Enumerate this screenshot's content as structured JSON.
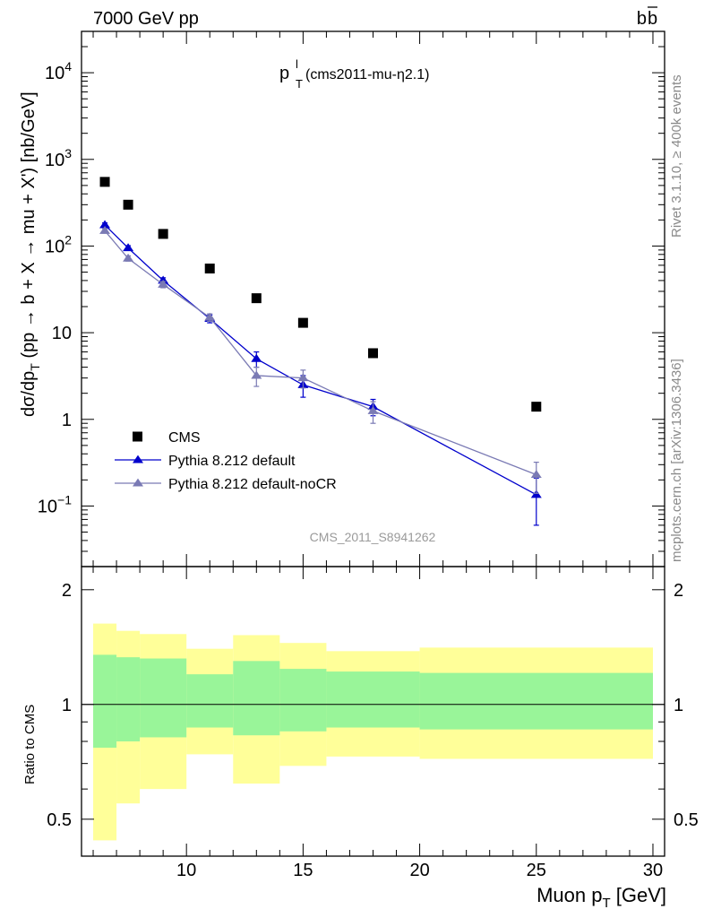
{
  "header": {
    "left": "7000 GeV pp",
    "right_b": "b",
    "right_bbar": "b"
  },
  "side_labels": {
    "rivet": "Rivet 3.1.10, ≥ 400k events",
    "mcplots": "mcplots.cern.ch [arXiv:1306.3436]"
  },
  "watermark": "CMS_2011_S8941262",
  "chart_data": [
    {
      "type": "scatter",
      "panel": "main",
      "title_main": "p",
      "title_sup": "l",
      "title_sub": "T",
      "title_rest": " (cms2011-mu-η2.1)",
      "ylabel": {
        "pre": "dσ/dp",
        "sub": "T",
        "post": "  (pp → b + X → mu + X') [nb/GeV]"
      },
      "yscale": "log",
      "ylim": [
        0.02,
        30000
      ],
      "xlim": [
        5.5,
        30.5
      ],
      "yticks": [
        {
          "v": 0.1,
          "base": "10",
          "exp": "−1"
        },
        {
          "v": 1,
          "base": "1",
          "exp": ""
        },
        {
          "v": 10,
          "base": "10",
          "exp": ""
        },
        {
          "v": 100,
          "base": "10",
          "exp": "2"
        },
        {
          "v": 1000,
          "base": "10",
          "exp": "3"
        },
        {
          "v": 10000,
          "base": "10",
          "exp": "4"
        }
      ],
      "legend_position": "bottom-left",
      "series": [
        {
          "name": "CMS",
          "color": "#000000",
          "marker": "square",
          "x": [
            6.5,
            7.5,
            9,
            11,
            13,
            15,
            18,
            25
          ],
          "y": [
            550,
            300,
            138,
            55,
            25,
            13,
            5.8,
            1.4
          ]
        },
        {
          "name": "Pythia 8.212 default",
          "color": "#0000cc",
          "marker": "triangle",
          "x": [
            6.5,
            7.5,
            9,
            11,
            13,
            15,
            18,
            25
          ],
          "y": [
            175,
            95,
            40,
            14.5,
            5.0,
            2.5,
            1.4,
            0.135
          ],
          "yerr": [
            10,
            6,
            3,
            1.5,
            1.0,
            0.7,
            0.3,
            0.075
          ]
        },
        {
          "name": "Pythia 8.212 default-noCR",
          "color": "#7a7ab4",
          "marker": "triangle",
          "x": [
            6.5,
            7.5,
            9,
            11,
            13,
            15,
            18,
            25
          ],
          "y": [
            150,
            72,
            36,
            15,
            3.2,
            3.0,
            1.25,
            0.23
          ],
          "yerr": [
            9,
            5,
            3,
            1.5,
            0.8,
            0.7,
            0.35,
            0.09
          ]
        }
      ]
    },
    {
      "type": "area",
      "panel": "ratio",
      "ylabel": "Ratio to CMS",
      "xlabel_main": "Muon p",
      "xlabel_sub": "T",
      "xlabel_post": " [GeV]",
      "ylim": [
        0.4,
        2.3
      ],
      "xlim": [
        5.5,
        30.5
      ],
      "yticks": [
        0.5,
        1,
        2
      ],
      "xticks": [
        10,
        15,
        20,
        25,
        30
      ],
      "reference_line": 1,
      "bands": {
        "bins": [
          {
            "lo": 6,
            "hi": 7,
            "stat_lo": 0.77,
            "stat_hi": 1.35,
            "tot_lo": 0.44,
            "tot_hi": 1.63
          },
          {
            "lo": 7,
            "hi": 8,
            "stat_lo": 0.8,
            "stat_hi": 1.33,
            "tot_lo": 0.55,
            "tot_hi": 1.56
          },
          {
            "lo": 8,
            "hi": 10,
            "stat_lo": 0.82,
            "stat_hi": 1.32,
            "tot_lo": 0.6,
            "tot_hi": 1.53
          },
          {
            "lo": 10,
            "hi": 12,
            "stat_lo": 0.87,
            "stat_hi": 1.2,
            "tot_lo": 0.74,
            "tot_hi": 1.4
          },
          {
            "lo": 12,
            "hi": 14,
            "stat_lo": 0.83,
            "stat_hi": 1.3,
            "tot_lo": 0.62,
            "tot_hi": 1.52
          },
          {
            "lo": 14,
            "hi": 16,
            "stat_lo": 0.85,
            "stat_hi": 1.24,
            "tot_lo": 0.69,
            "tot_hi": 1.45
          },
          {
            "lo": 16,
            "hi": 20,
            "stat_lo": 0.87,
            "stat_hi": 1.22,
            "tot_lo": 0.73,
            "tot_hi": 1.38
          },
          {
            "lo": 20,
            "hi": 30,
            "stat_lo": 0.86,
            "stat_hi": 1.21,
            "tot_lo": 0.72,
            "tot_hi": 1.41
          }
        ],
        "stat_color": "#99f599",
        "total_color": "#ffff99"
      }
    }
  ]
}
